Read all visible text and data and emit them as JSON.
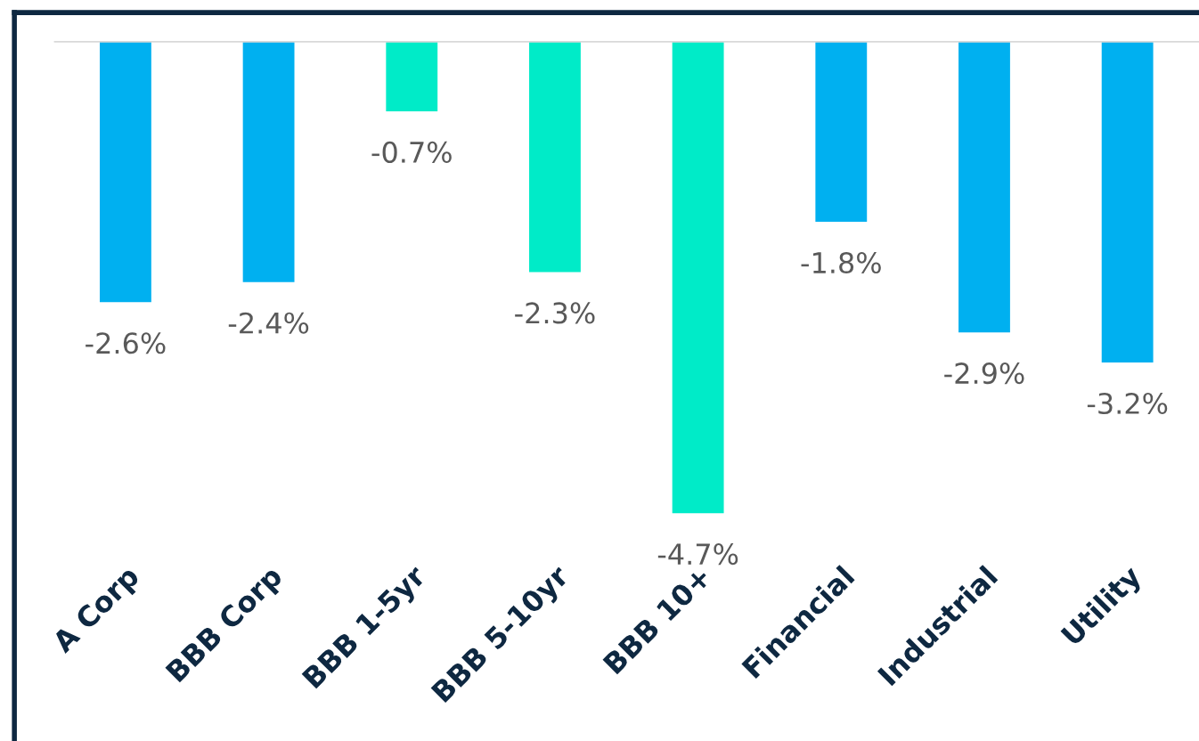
{
  "chart_data": {
    "type": "bar",
    "categories": [
      "A Corp",
      "BBB Corp",
      "BBB 1-5yr",
      "BBB 5-10yr",
      "BBB 10+",
      "Financial",
      "Industrial",
      "Utility"
    ],
    "values": [
      -2.6,
      -2.4,
      -0.7,
      -2.3,
      -4.7,
      -1.8,
      -2.9,
      -3.2
    ],
    "colors": [
      "#00b0f0",
      "#00b0f0",
      "#00ebc8",
      "#00ebc8",
      "#00ebc8",
      "#00b0f0",
      "#00b0f0",
      "#00b0f0"
    ],
    "value_labels": [
      "-2.6%",
      "-2.4%",
      "-0.7%",
      "-2.3%",
      "-4.7%",
      "-1.8%",
      "-2.9%",
      "-3.2%"
    ],
    "grid": false
  }
}
